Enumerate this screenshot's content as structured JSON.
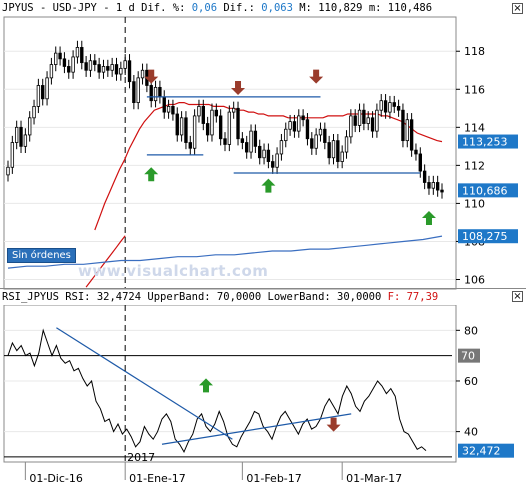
{
  "header_main": {
    "symbol": "JPYUS",
    "pair": "USD-JPY",
    "interval": "1 d",
    "dif_pct_label": "Dif. %:",
    "dif_pct_value": "0,06",
    "dif_label": "Dif.:",
    "dif_value": "0,063",
    "max_label": "M:",
    "max_value": "110,829",
    "min_label": "m:",
    "min_value": "110,486"
  },
  "header_rsi": {
    "text": "RSI_JPYUS RSI: 32,4724 UpperBand: 70,0000 LowerBand: 30,0000",
    "f_label": "F:",
    "f_value": "77,39"
  },
  "close_glyph": "×",
  "sin_ordenes_label": "Sin órdenes",
  "watermark": "www.visualchart.com",
  "year_label": "2017",
  "chart_data": [
    {
      "type": "candlestick",
      "title": "",
      "ylim": [
        105.5,
        119.8
      ],
      "y_ticks": [
        106,
        108,
        110,
        112,
        114,
        116,
        118
      ],
      "x_ticks": [
        "01-Dic-16",
        "01-Ene-17",
        "01-Feb-17",
        "01-Mar-17"
      ],
      "price_labels": [
        {
          "value": 113.253,
          "label": "113,253",
          "color": "#1e78c8"
        },
        {
          "value": 110.686,
          "label": "110,686",
          "color": "#1e78c8"
        },
        {
          "value": 108.275,
          "label": "108,275",
          "color": "#1e78c8"
        }
      ],
      "series": [
        {
          "name": "",
          "kind": "ohlc",
          "color": "#000000",
          "close": [
            111.9,
            113.2,
            114.0,
            113.0,
            113.6,
            114.5,
            115.1,
            116.2,
            115.5,
            116.6,
            117.3,
            117.9,
            117.6,
            117.2,
            116.9,
            117.7,
            118.2,
            117.4,
            117.0,
            117.5,
            117.3,
            116.9,
            117.2,
            117.0,
            117.3,
            116.8,
            117.1,
            117.5,
            116.4,
            115.3,
            116.6,
            117.0,
            116.2,
            115.4,
            116.1,
            115.6,
            114.8,
            115.1,
            114.7,
            113.6,
            114.5,
            113.2,
            112.9,
            114.6,
            115.1,
            114.2,
            113.6,
            114.9,
            114.6,
            113.4,
            113.1,
            114.8,
            115.0,
            113.4,
            113.2,
            112.7,
            113.8,
            113.0,
            112.4,
            112.8,
            112.2,
            111.9,
            112.6,
            113.3,
            113.9,
            114.3,
            113.8,
            114.6,
            114.4,
            113.4,
            112.9,
            113.6,
            113.9,
            113.2,
            112.4,
            113.3,
            112.2,
            112.7,
            113.5,
            114.6,
            114.1,
            114.9,
            114.2,
            114.5,
            113.8,
            114.9,
            115.4,
            114.8,
            115.3,
            115.1,
            114.9,
            113.3,
            114.4,
            112.8,
            112.6,
            111.7,
            111.1,
            110.8,
            111.1,
            110.7,
            110.6
          ]
        },
        {
          "name": "",
          "kind": "moving-average",
          "color": "#d01010",
          "x_start": 20,
          "values": [
            108.6,
            109.3,
            110.0,
            110.6,
            111.2,
            111.8,
            112.3,
            112.9,
            113.4,
            113.9,
            114.3,
            114.6,
            114.9,
            115.0,
            115.1,
            115.2,
            115.2,
            115.3,
            115.3,
            115.2,
            115.2,
            115.2,
            115.2,
            115.2,
            115.1,
            115.1,
            115.1,
            115.0,
            115.0,
            114.9,
            114.9,
            114.8,
            114.8,
            114.7,
            114.7,
            114.6,
            114.6,
            114.6,
            114.6,
            114.5,
            114.5,
            114.5,
            114.5,
            114.5,
            114.5,
            114.5,
            114.5,
            114.6,
            114.6,
            114.6,
            114.6,
            114.7,
            114.7,
            114.7,
            114.7,
            114.7,
            114.7,
            114.7,
            114.6,
            114.6,
            114.5,
            114.4,
            114.3,
            114.1,
            113.9,
            113.7,
            113.6,
            113.5,
            113.4,
            113.3,
            113.25
          ]
        },
        {
          "name": "",
          "kind": "moving-average",
          "color": "#d01010",
          "values": [
            105.6,
            105.9,
            106.2,
            106.5,
            106.8,
            107.1,
            107.4,
            107.7,
            108.0,
            108.3
          ]
        },
        {
          "name": "",
          "kind": "moving-average",
          "color": "#3a6ec0",
          "x_start": 0,
          "values": [
            106.6,
            106.7,
            106.7,
            106.8,
            106.8,
            106.9,
            107.0,
            107.0,
            107.1,
            107.2,
            107.2,
            107.3,
            107.3,
            107.4,
            107.5,
            107.5,
            107.6,
            107.6,
            107.7,
            107.8,
            107.9,
            108.0,
            108.1,
            108.28
          ]
        }
      ],
      "annotations": [
        {
          "kind": "resistance-line",
          "x": [
            32,
            72
          ],
          "y": 115.6,
          "color": "#1e5aa8"
        },
        {
          "kind": "support-line",
          "x": [
            32,
            45
          ],
          "y": 112.55,
          "color": "#1e5aa8"
        },
        {
          "kind": "support-line",
          "x": [
            52,
            95
          ],
          "y": 111.6,
          "color": "#1e5aa8"
        },
        {
          "kind": "arrow-down",
          "x": [
            33
          ],
          "y": 116.3,
          "color": "#9a3c2c"
        },
        {
          "kind": "arrow-down",
          "x": [
            53
          ],
          "y": 115.7,
          "color": "#9a3c2c"
        },
        {
          "kind": "arrow-down",
          "x": [
            71
          ],
          "y": 116.3,
          "color": "#9a3c2c"
        },
        {
          "kind": "arrow-up",
          "x": [
            33
          ],
          "y": 111.9,
          "color": "#2a9a2a"
        },
        {
          "kind": "arrow-up",
          "x": [
            60
          ],
          "y": 111.3,
          "color": "#2a9a2a"
        },
        {
          "kind": "arrow-up",
          "x": [
            97
          ],
          "y": 109.6,
          "color": "#2a9a2a"
        }
      ]
    },
    {
      "type": "line",
      "title": "RSI",
      "ylim": [
        28,
        90
      ],
      "y_ticks": [
        40,
        60,
        80
      ],
      "bands": [
        {
          "value": 70,
          "label": "70"
        },
        {
          "value": 30,
          "label": "30"
        }
      ],
      "last_label": {
        "value": 32.472,
        "label": "32,472"
      },
      "series": [
        {
          "name": "RSI",
          "color": "#000000",
          "values": [
            70,
            75,
            72,
            74,
            70,
            71,
            66,
            71,
            80,
            75,
            70,
            74,
            69,
            67,
            68,
            64,
            65,
            61,
            58,
            60,
            52,
            49,
            44,
            45,
            40,
            43,
            39,
            41,
            38,
            34,
            36,
            42,
            39,
            37,
            40,
            45,
            47,
            44,
            37,
            35,
            32,
            36,
            39,
            45,
            47,
            42,
            40,
            43,
            48,
            44,
            38,
            35,
            34,
            38,
            41,
            44,
            48,
            47,
            42,
            40,
            37,
            42,
            46,
            48,
            45,
            42,
            39,
            43,
            45,
            41,
            42,
            45,
            50,
            53,
            50,
            47,
            54,
            58,
            55,
            50,
            48,
            52,
            54,
            57,
            60,
            58,
            55,
            57,
            54,
            45,
            40,
            39,
            36,
            33,
            34,
            32.5
          ]
        }
      ],
      "annotations": [
        {
          "kind": "trendline",
          "x": [
            11,
            51
          ],
          "y": [
            81,
            37
          ],
          "color": "#1e5aa8"
        },
        {
          "kind": "trendline",
          "x": [
            35,
            78
          ],
          "y": [
            35,
            47
          ],
          "color": "#1e5aa8"
        },
        {
          "kind": "arrow-up",
          "x": [
            45
          ],
          "y": 61,
          "color": "#2a9a2a"
        },
        {
          "kind": "arrow-down",
          "x": [
            74
          ],
          "y": 40,
          "color": "#9a3c2c"
        }
      ]
    }
  ]
}
